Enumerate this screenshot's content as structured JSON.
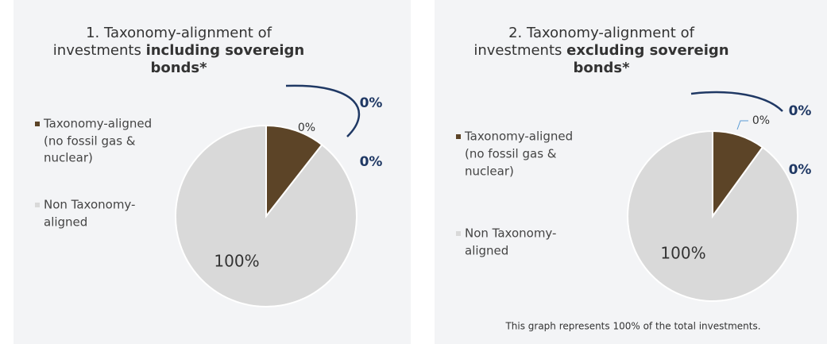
{
  "panels": [
    {
      "title": {
        "line1": "1. Taxonomy-alignment of",
        "line2_regular": "investments",
        "line2_bold": "including sovereign",
        "line3_bold": "bonds*"
      },
      "legend": [
        {
          "lines": [
            "Taxonomy-aligned",
            "(no fossil gas &",
            "nuclear)"
          ]
        },
        {
          "lines": [
            "Non Taxonomy-",
            "aligned"
          ]
        }
      ],
      "slice_label": "0%",
      "rest_label": "100%",
      "callouts": [
        "0%",
        "0%"
      ]
    },
    {
      "title": {
        "line1": "2. Taxonomy-alignment of",
        "line2_regular": "investments",
        "line2_bold": "excluding sovereign",
        "line3_bold": "bonds*"
      },
      "legend": [
        {
          "lines": [
            "Taxonomy-aligned",
            "(no fossil gas &",
            "nuclear)"
          ]
        },
        {
          "lines": [
            "Non Taxonomy-",
            "aligned"
          ]
        }
      ],
      "slice_label": "0%",
      "rest_label": "100%",
      "callouts": [
        "0%",
        "0%"
      ],
      "footnote": "This graph represents 100% of the total investments."
    }
  ]
}
